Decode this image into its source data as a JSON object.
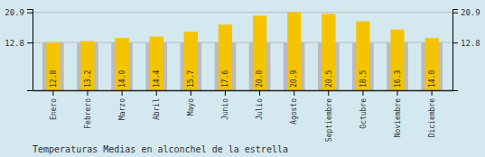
{
  "chart_data": {
    "type": "bar",
    "title": "Temperaturas Medias en alconchel de la estrella",
    "categories": [
      "Enero",
      "Febrero",
      "Marzo",
      "Abril",
      "Mayo",
      "Junio",
      "Julio",
      "Agosto",
      "Septiembre",
      "Octubre",
      "Noviembre",
      "Diciembre"
    ],
    "series": [
      {
        "color": "#BBBBBB",
        "values": [
          12.8,
          12.8,
          12.8,
          12.8,
          12.8,
          12.8,
          12.8,
          12.8,
          12.8,
          12.8,
          12.8,
          12.8
        ]
      },
      {
        "color": "#F5C400",
        "values": [
          12.8,
          13.2,
          14.0,
          14.4,
          15.7,
          17.6,
          20.0,
          20.9,
          20.5,
          18.5,
          16.3,
          14.0
        ],
        "value_labels": [
          "12.8",
          "13.2",
          "14.0",
          "14.4",
          "15.7",
          "17.6",
          "20.0",
          "20.9",
          "20.5",
          "18.5",
          "16.3",
          "14.0"
        ],
        "data_labels": true
      }
    ],
    "ylim": [
      0,
      21.8
    ],
    "yticks": [
      12.8,
      20.9
    ],
    "y2lim": [
      0,
      21.8
    ],
    "y2ticks": [
      12.8,
      20.9
    ],
    "grid": true
  }
}
